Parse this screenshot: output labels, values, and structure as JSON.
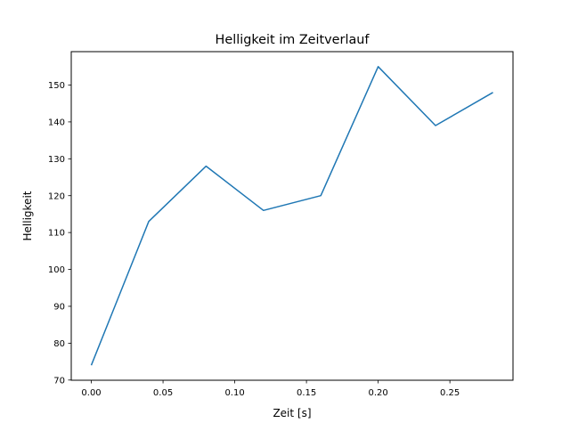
{
  "chart_data": {
    "type": "line",
    "title": "Helligkeit im Zeitverlauf",
    "xlabel": "Zeit [s]",
    "ylabel": "Helligkeit",
    "x": [
      0.0,
      0.04,
      0.08,
      0.12,
      0.16,
      0.2,
      0.24,
      0.28
    ],
    "series": [
      {
        "name": "Helligkeit",
        "values": [
          74,
          113,
          128,
          116,
          120,
          155,
          139,
          148
        ],
        "color": "#1f77b4"
      }
    ],
    "xlim": [
      -0.014,
      0.294
    ],
    "ylim": [
      69.95,
      159.05
    ],
    "xticks": [
      0.0,
      0.05,
      0.1,
      0.15,
      0.2,
      0.25
    ],
    "xtick_labels": [
      "0.00",
      "0.05",
      "0.10",
      "0.15",
      "0.20",
      "0.25"
    ],
    "yticks": [
      70,
      80,
      90,
      100,
      110,
      120,
      130,
      140,
      150
    ],
    "ytick_labels": [
      "70",
      "80",
      "90",
      "100",
      "110",
      "120",
      "130",
      "140",
      "150"
    ],
    "grid": false,
    "legend": "none"
  }
}
